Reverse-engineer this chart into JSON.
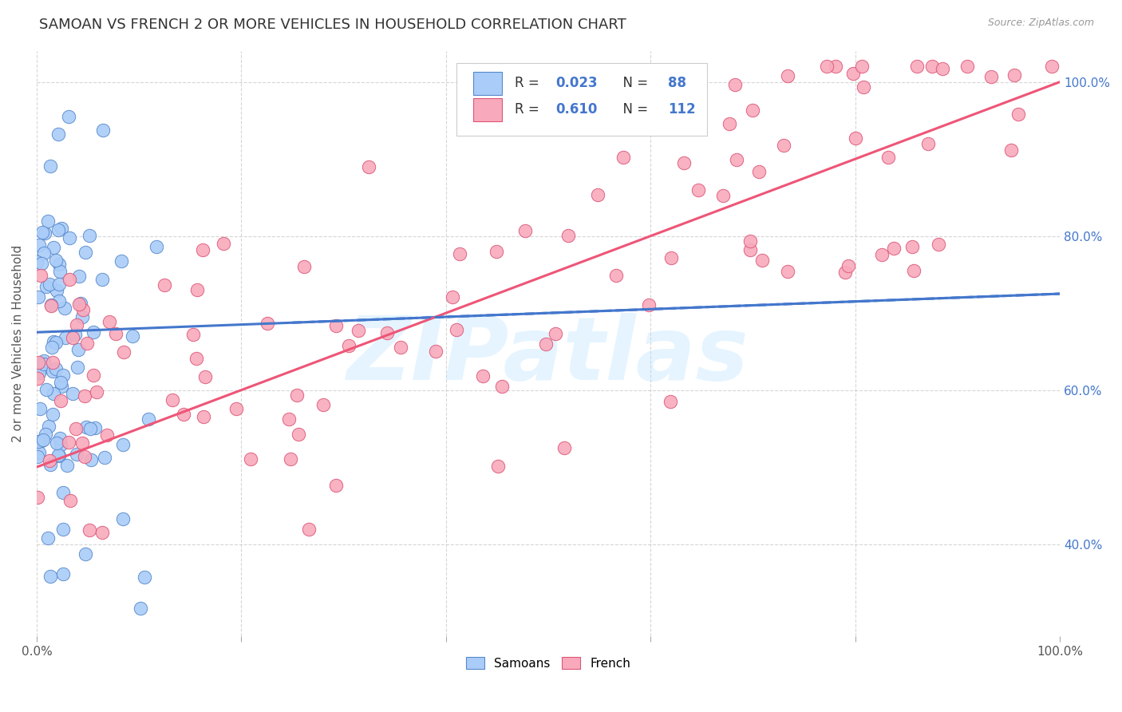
{
  "title": "SAMOAN VS FRENCH 2 OR MORE VEHICLES IN HOUSEHOLD CORRELATION CHART",
  "source": "Source: ZipAtlas.com",
  "ylabel": "2 or more Vehicles in Household",
  "xlim": [
    0,
    1
  ],
  "ylim": [
    0.28,
    1.04
  ],
  "yticks": [
    0.4,
    0.6,
    0.8,
    1.0
  ],
  "ytick_labels_right": [
    "40.0%",
    "60.0%",
    "80.0%",
    "100.0%"
  ],
  "xtick_labels": [
    "0.0%",
    "",
    "",
    "",
    "",
    "100.0%"
  ],
  "samoans_color": "#aaccf8",
  "samoans_edge": "#5588cc",
  "french_color": "#f8aabc",
  "french_edge": "#dd5577",
  "trend_samoan_color": "#4477cc",
  "trend_french_color": "#ee5577",
  "R_samoan": 0.023,
  "N_samoan": 88,
  "R_french": 0.61,
  "N_french": 112,
  "watermark": "ZIPatlas",
  "watermark_color": "#aaddff",
  "legend_label_samoan": "Samoans",
  "legend_label_french": "French",
  "background_color": "#ffffff",
  "grid_color": "#cccccc",
  "title_fontsize": 13,
  "axis_label_fontsize": 11,
  "tick_fontsize": 11,
  "right_tick_color": "#4477cc",
  "samoan_trend_start_y": 0.675,
  "samoan_trend_end_y": 0.725,
  "french_trend_start_y": 0.5,
  "french_trend_end_y": 1.0
}
